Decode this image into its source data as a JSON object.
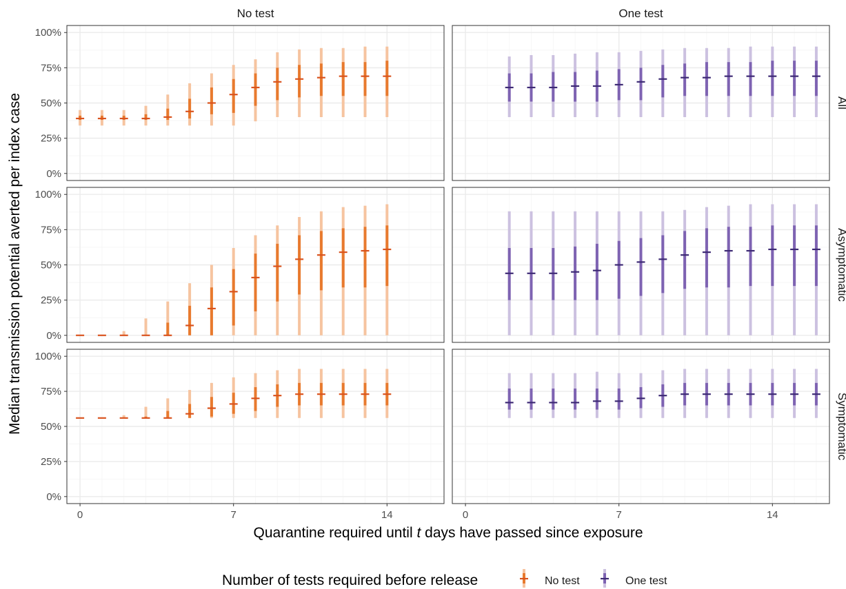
{
  "colors": {
    "no_test": "#E87A2E",
    "no_test_outer": "#F6C4A0",
    "one_test": "#7E63B2",
    "one_test_outer": "#CCC1E0",
    "one_test_median": "#3D2A74",
    "no_test_median": "#D9531E",
    "grid_major": "#EBEBEB",
    "grid_minor": "#F5F5F5",
    "panel_border": "#333333"
  },
  "chart_data": {
    "type": "interval",
    "xlabel_prefix": "Quarantine required until ",
    "xlabel_italic": "t",
    "xlabel_suffix": " days have passed since exposure",
    "ylabel": "Median transmission potential averted per index case",
    "col_facets": [
      "No test",
      "One test"
    ],
    "row_facets": [
      "All",
      "Asymptomatic",
      "Symptomatic"
    ],
    "xlim": [
      -0.6,
      16.6
    ],
    "ylim": [
      -0.05,
      1.05
    ],
    "x_ticks": [
      0,
      7,
      14
    ],
    "x_tick_labels": [
      "0",
      "7",
      "14"
    ],
    "y_ticks": [
      0,
      0.25,
      0.5,
      0.75,
      1.0
    ],
    "y_tick_labels": [
      "0%",
      "25%",
      "50%",
      "75%",
      "100%"
    ],
    "legend_title": "Number of tests required before release",
    "legend_entries": [
      {
        "key": "no_test",
        "label": "No test"
      },
      {
        "key": "one_test",
        "label": "One test"
      }
    ],
    "series_fields": [
      "x",
      "median",
      "inner_low",
      "inner_high",
      "outer_low",
      "outer_high"
    ],
    "panels": {
      "All": {
        "No test": [
          [
            0,
            0.39,
            0.38,
            0.41,
            0.34,
            0.45
          ],
          [
            1,
            0.39,
            0.38,
            0.41,
            0.34,
            0.45
          ],
          [
            2,
            0.39,
            0.38,
            0.41,
            0.34,
            0.45
          ],
          [
            3,
            0.39,
            0.38,
            0.42,
            0.34,
            0.48
          ],
          [
            4,
            0.4,
            0.38,
            0.46,
            0.34,
            0.56
          ],
          [
            5,
            0.44,
            0.39,
            0.53,
            0.34,
            0.64
          ],
          [
            6,
            0.5,
            0.42,
            0.61,
            0.34,
            0.71
          ],
          [
            7,
            0.56,
            0.43,
            0.67,
            0.34,
            0.77
          ],
          [
            8,
            0.61,
            0.48,
            0.71,
            0.37,
            0.81
          ],
          [
            9,
            0.65,
            0.52,
            0.75,
            0.4,
            0.86
          ],
          [
            10,
            0.67,
            0.54,
            0.77,
            0.4,
            0.88
          ],
          [
            11,
            0.68,
            0.55,
            0.78,
            0.4,
            0.89
          ],
          [
            12,
            0.69,
            0.55,
            0.79,
            0.4,
            0.89
          ],
          [
            13,
            0.69,
            0.55,
            0.79,
            0.4,
            0.9
          ],
          [
            14,
            0.69,
            0.55,
            0.8,
            0.4,
            0.9
          ]
        ],
        "One test": [
          [
            2,
            0.61,
            0.51,
            0.71,
            0.4,
            0.83
          ],
          [
            3,
            0.61,
            0.51,
            0.71,
            0.4,
            0.84
          ],
          [
            4,
            0.61,
            0.51,
            0.72,
            0.4,
            0.84
          ],
          [
            5,
            0.62,
            0.51,
            0.72,
            0.4,
            0.85
          ],
          [
            6,
            0.62,
            0.51,
            0.73,
            0.4,
            0.86
          ],
          [
            7,
            0.63,
            0.52,
            0.74,
            0.4,
            0.86
          ],
          [
            8,
            0.65,
            0.52,
            0.75,
            0.4,
            0.87
          ],
          [
            9,
            0.67,
            0.54,
            0.77,
            0.4,
            0.88
          ],
          [
            10,
            0.68,
            0.55,
            0.78,
            0.4,
            0.89
          ],
          [
            11,
            0.68,
            0.55,
            0.79,
            0.4,
            0.89
          ],
          [
            12,
            0.69,
            0.55,
            0.79,
            0.4,
            0.89
          ],
          [
            13,
            0.69,
            0.55,
            0.79,
            0.4,
            0.9
          ],
          [
            14,
            0.69,
            0.55,
            0.8,
            0.4,
            0.9
          ],
          [
            15,
            0.69,
            0.55,
            0.8,
            0.4,
            0.9
          ],
          [
            16,
            0.69,
            0.55,
            0.8,
            0.4,
            0.9
          ]
        ]
      },
      "Asymptomatic": {
        "No test": [
          [
            0,
            0.0,
            0.0,
            0.0,
            0.0,
            0.0
          ],
          [
            1,
            0.0,
            0.0,
            0.0,
            0.0,
            0.0
          ],
          [
            2,
            0.0,
            0.0,
            0.0,
            0.0,
            0.03
          ],
          [
            3,
            0.0,
            0.0,
            0.0,
            0.0,
            0.12
          ],
          [
            4,
            0.0,
            0.0,
            0.09,
            0.0,
            0.24
          ],
          [
            5,
            0.07,
            0.0,
            0.21,
            0.0,
            0.37
          ],
          [
            6,
            0.19,
            0.0,
            0.34,
            0.0,
            0.5
          ],
          [
            7,
            0.31,
            0.07,
            0.47,
            0.0,
            0.62
          ],
          [
            8,
            0.41,
            0.17,
            0.58,
            0.0,
            0.71
          ],
          [
            9,
            0.49,
            0.24,
            0.65,
            0.0,
            0.78
          ],
          [
            10,
            0.54,
            0.29,
            0.71,
            0.0,
            0.84
          ],
          [
            11,
            0.57,
            0.32,
            0.74,
            0.0,
            0.88
          ],
          [
            12,
            0.59,
            0.34,
            0.76,
            0.0,
            0.91
          ],
          [
            13,
            0.6,
            0.34,
            0.77,
            0.0,
            0.92
          ],
          [
            14,
            0.61,
            0.35,
            0.78,
            0.0,
            0.93
          ]
        ],
        "One test": [
          [
            2,
            0.44,
            0.25,
            0.62,
            0.0,
            0.88
          ],
          [
            3,
            0.44,
            0.25,
            0.62,
            0.0,
            0.88
          ],
          [
            4,
            0.44,
            0.25,
            0.62,
            0.0,
            0.88
          ],
          [
            5,
            0.45,
            0.25,
            0.63,
            0.0,
            0.88
          ],
          [
            6,
            0.46,
            0.25,
            0.65,
            0.0,
            0.88
          ],
          [
            7,
            0.5,
            0.26,
            0.67,
            0.0,
            0.88
          ],
          [
            8,
            0.52,
            0.28,
            0.69,
            0.0,
            0.88
          ],
          [
            9,
            0.54,
            0.3,
            0.71,
            0.0,
            0.88
          ],
          [
            10,
            0.57,
            0.33,
            0.74,
            0.0,
            0.89
          ],
          [
            11,
            0.59,
            0.34,
            0.76,
            0.0,
            0.91
          ],
          [
            12,
            0.6,
            0.34,
            0.77,
            0.0,
            0.92
          ],
          [
            13,
            0.6,
            0.35,
            0.77,
            0.0,
            0.93
          ],
          [
            14,
            0.61,
            0.35,
            0.78,
            0.0,
            0.93
          ],
          [
            15,
            0.61,
            0.35,
            0.78,
            0.0,
            0.93
          ],
          [
            16,
            0.61,
            0.35,
            0.78,
            0.0,
            0.93
          ]
        ]
      },
      "Symptomatic": {
        "No test": [
          [
            0,
            0.56,
            0.56,
            0.56,
            0.56,
            0.56
          ],
          [
            1,
            0.56,
            0.56,
            0.56,
            0.56,
            0.56
          ],
          [
            2,
            0.56,
            0.56,
            0.56,
            0.56,
            0.58
          ],
          [
            3,
            0.56,
            0.56,
            0.57,
            0.56,
            0.64
          ],
          [
            4,
            0.56,
            0.56,
            0.61,
            0.56,
            0.7
          ],
          [
            5,
            0.59,
            0.56,
            0.66,
            0.56,
            0.76
          ],
          [
            6,
            0.63,
            0.57,
            0.71,
            0.56,
            0.81
          ],
          [
            7,
            0.66,
            0.59,
            0.74,
            0.56,
            0.85
          ],
          [
            8,
            0.7,
            0.61,
            0.78,
            0.56,
            0.88
          ],
          [
            9,
            0.72,
            0.64,
            0.8,
            0.56,
            0.9
          ],
          [
            10,
            0.73,
            0.65,
            0.81,
            0.56,
            0.91
          ],
          [
            11,
            0.73,
            0.65,
            0.81,
            0.56,
            0.91
          ],
          [
            12,
            0.73,
            0.65,
            0.81,
            0.56,
            0.91
          ],
          [
            13,
            0.73,
            0.65,
            0.81,
            0.56,
            0.91
          ],
          [
            14,
            0.73,
            0.65,
            0.81,
            0.56,
            0.91
          ]
        ],
        "One test": [
          [
            2,
            0.67,
            0.62,
            0.77,
            0.56,
            0.88
          ],
          [
            3,
            0.67,
            0.62,
            0.77,
            0.56,
            0.88
          ],
          [
            4,
            0.67,
            0.62,
            0.77,
            0.56,
            0.88
          ],
          [
            5,
            0.67,
            0.62,
            0.77,
            0.56,
            0.88
          ],
          [
            6,
            0.68,
            0.62,
            0.77,
            0.56,
            0.89
          ],
          [
            7,
            0.68,
            0.62,
            0.77,
            0.56,
            0.88
          ],
          [
            8,
            0.7,
            0.63,
            0.78,
            0.56,
            0.88
          ],
          [
            9,
            0.72,
            0.64,
            0.8,
            0.56,
            0.9
          ],
          [
            10,
            0.73,
            0.65,
            0.81,
            0.56,
            0.91
          ],
          [
            11,
            0.73,
            0.65,
            0.81,
            0.56,
            0.91
          ],
          [
            12,
            0.73,
            0.65,
            0.81,
            0.56,
            0.91
          ],
          [
            13,
            0.73,
            0.65,
            0.81,
            0.56,
            0.91
          ],
          [
            14,
            0.73,
            0.65,
            0.81,
            0.56,
            0.91
          ],
          [
            15,
            0.73,
            0.65,
            0.81,
            0.56,
            0.91
          ],
          [
            16,
            0.73,
            0.65,
            0.81,
            0.56,
            0.91
          ]
        ]
      }
    }
  }
}
